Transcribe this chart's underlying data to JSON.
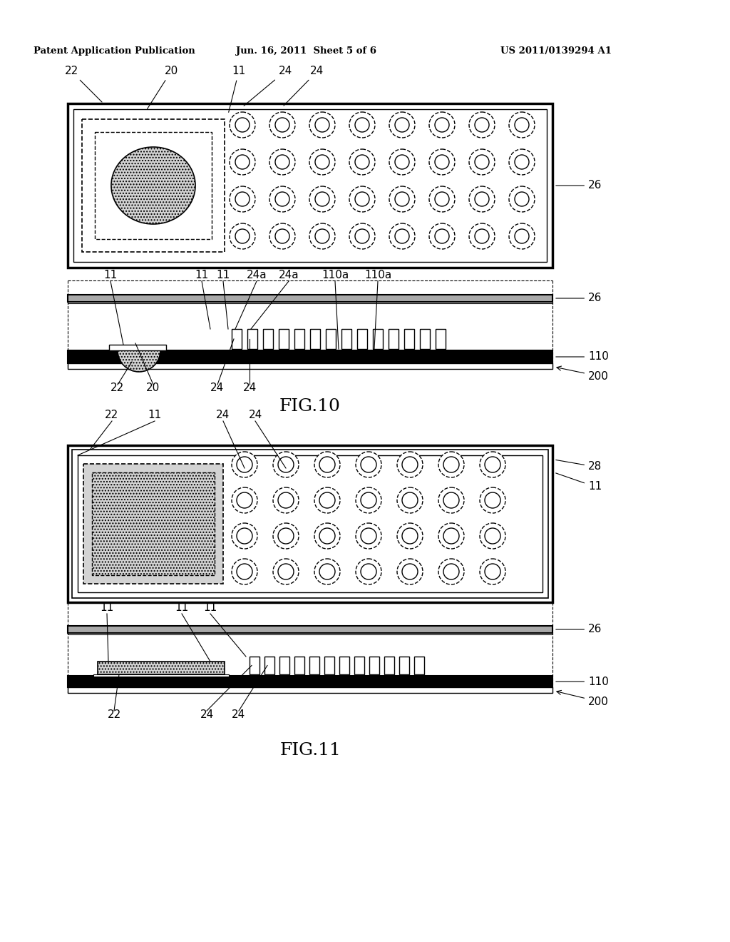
{
  "bg_color": "#ffffff",
  "header_left": "Patent Application Publication",
  "header_mid": "Jun. 16, 2011  Sheet 5 of 6",
  "header_right": "US 2011/0139294 A1",
  "fig10_label": "FIG.10",
  "fig11_label": "FIG.11"
}
